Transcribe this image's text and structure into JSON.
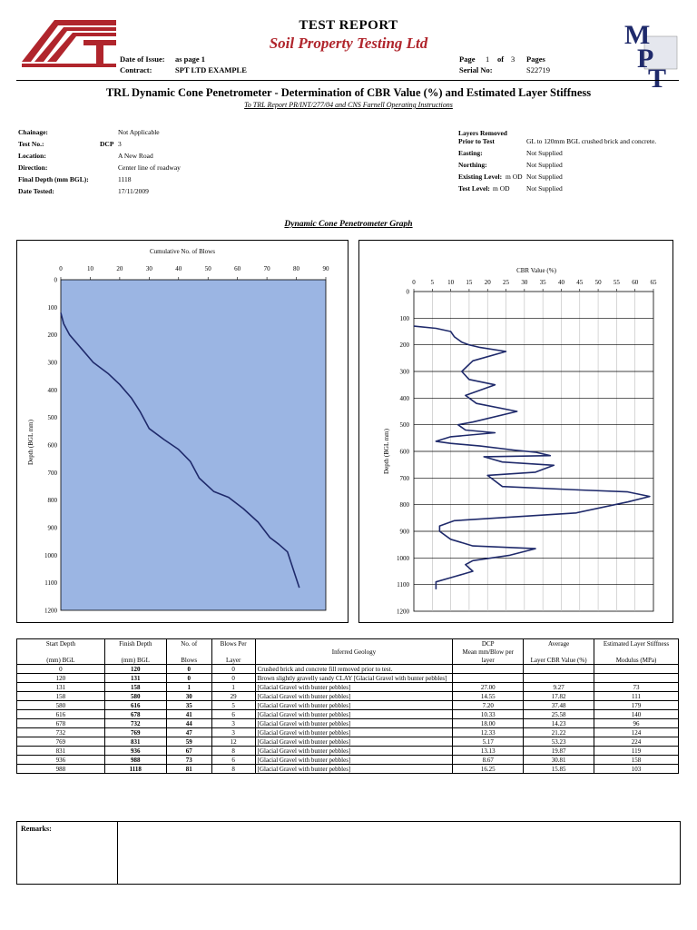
{
  "header": {
    "title": "TEST REPORT",
    "company": "Soil Property Testing Ltd",
    "date_of_issue_label": "Date of Issue:",
    "date_of_issue_value": "as page 1",
    "contract_label": "Contract:",
    "contract_value": "SPT LTD EXAMPLE",
    "page_label": "Page",
    "page_num": "1",
    "of_label": "of",
    "page_total": "3",
    "pages_label": "Pages",
    "serial_label": "Serial No:",
    "serial_value": "S22719",
    "logo_right_text": "MPT",
    "brand_color": "#b0252c",
    "navy_color": "#1f2a6b"
  },
  "report": {
    "title": "TRL Dynamic Cone Penetrometer - Determination of CBR Value (%) and Estimated Layer Stiffness",
    "subtitle": "To TRL Report PR/INT/277/04 and CNS Farnell Operating Instructions"
  },
  "info_left": [
    {
      "label": "Chainage:",
      "value": "Not Applicable"
    },
    {
      "label": "Test No.:",
      "value": "3",
      "prefix": "DCP"
    },
    {
      "label": "Location:",
      "value": "A New Road"
    },
    {
      "label": "Direction:",
      "value": "Center line of roadway"
    },
    {
      "label": "Final Depth (mm BGL):",
      "value": "1118"
    },
    {
      "label": "Date Tested:",
      "value": "17/11/2009"
    }
  ],
  "info_right": {
    "layers_label_1": "Layers Removed",
    "layers_label_2": "Prior to Test",
    "layers_value": "GL to 120mm BGL crushed brick and concrete.",
    "easting_label": "Easting:",
    "easting_value": "Not Supplied",
    "northing_label": "Northing:",
    "northing_value": "Not Supplied",
    "existing_label": "Existing Level:",
    "existing_unit": "m OD",
    "existing_value": "Not Supplied",
    "test_level_label": "Test Level:",
    "test_level_unit": "m OD",
    "test_level_value": "Not Supplied"
  },
  "graph_title": "Dynamic Cone Penetrometer Graph",
  "chart_data": [
    {
      "type": "line",
      "title": "Cumulative No. of Blows",
      "xlabel": "Cumulative No. of Blows",
      "ylabel": "Depth (BGL mm)",
      "xlim": [
        0,
        90
      ],
      "ylim": [
        0,
        1200
      ],
      "x_ticks": [
        0,
        10,
        20,
        30,
        40,
        50,
        60,
        70,
        80,
        90
      ],
      "y_ticks": [
        0,
        100,
        200,
        300,
        400,
        500,
        600,
        700,
        800,
        900,
        1000,
        1100,
        1200
      ],
      "plot_color": "#9bb5e3",
      "line_color": "#1f2a6b",
      "x": [
        0,
        1,
        3,
        7,
        11,
        16,
        20,
        24,
        27,
        30,
        35,
        40,
        44,
        47,
        52,
        57,
        62,
        67,
        71,
        74,
        77,
        81
      ],
      "y": [
        120,
        160,
        200,
        250,
        300,
        340,
        380,
        430,
        480,
        540,
        580,
        616,
        660,
        720,
        769,
        790,
        831,
        880,
        936,
        960,
        988,
        1118
      ]
    },
    {
      "type": "line",
      "title": "CBR Value (%)",
      "xlabel": "CBR Value (%)",
      "ylabel": "Depth (BGL mm)",
      "xlim": [
        0,
        65
      ],
      "ylim": [
        0,
        1200
      ],
      "x_ticks": [
        0,
        5,
        10,
        15,
        20,
        25,
        30,
        35,
        40,
        45,
        50,
        55,
        60,
        65
      ],
      "y_ticks": [
        0,
        100,
        200,
        300,
        400,
        500,
        600,
        700,
        800,
        900,
        1000,
        1100,
        1200
      ],
      "line_color": "#1f2a6b",
      "x": [
        0,
        6,
        10,
        11,
        13,
        15,
        18,
        25,
        16,
        13,
        15,
        22,
        14,
        17,
        28,
        16,
        12,
        14,
        22,
        10,
        6,
        10,
        18,
        27,
        33,
        37,
        19,
        24,
        38,
        33,
        20,
        24,
        45,
        58,
        64,
        58,
        44,
        11,
        7,
        7,
        10,
        16,
        33,
        26,
        16,
        14,
        16,
        11,
        6,
        6
      ],
      "y": [
        130,
        138,
        150,
        170,
        190,
        200,
        210,
        225,
        260,
        300,
        330,
        350,
        390,
        420,
        450,
        490,
        500,
        520,
        530,
        545,
        562,
        570,
        580,
        595,
        603,
        616,
        620,
        640,
        652,
        678,
        690,
        732,
        745,
        752,
        769,
        790,
        831,
        860,
        880,
        900,
        930,
        955,
        965,
        990,
        1010,
        1025,
        1050,
        1070,
        1090,
        1118
      ]
    }
  ],
  "table": {
    "headers": [
      [
        "Start Depth",
        "(mm) BGL"
      ],
      [
        "Finish Depth",
        "(mm) BGL"
      ],
      [
        "No. of",
        "Blows"
      ],
      [
        "Blows Per",
        "Layer"
      ],
      [
        "Inferred Geology"
      ],
      [
        "DCP",
        "Mean mm/Blow per",
        "layer"
      ],
      [
        "Average",
        "Layer CBR Value (%)"
      ],
      [
        "Estimated Layer Stiffness",
        "Modulus  (MPa)"
      ]
    ],
    "rows": [
      [
        "0",
        "120",
        "0",
        "0",
        "Crushed brick and concrete fill removed prior to test.",
        "",
        "",
        ""
      ],
      [
        "120",
        "131",
        "0",
        "0",
        "Brown slightly gravelly sandy CLAY [Glacial Gravel with bunter pebbles]",
        "",
        "",
        ""
      ],
      [
        "131",
        "158",
        "1",
        "1",
        "[Glacial Gravel with bunter pebbles]",
        "27.00",
        "9.27",
        "73"
      ],
      [
        "158",
        "580",
        "30",
        "29",
        "[Glacial Gravel with bunter pebbles]",
        "14.55",
        "17.82",
        "111"
      ],
      [
        "580",
        "616",
        "35",
        "5",
        "[Glacial Gravel with bunter pebbles]",
        "7.20",
        "37.48",
        "179"
      ],
      [
        "616",
        "678",
        "41",
        "6",
        "[Glacial Gravel with bunter pebbles]",
        "10.33",
        "25.58",
        "140"
      ],
      [
        "678",
        "732",
        "44",
        "3",
        "[Glacial Gravel with bunter pebbles]",
        "18.00",
        "14.23",
        "96"
      ],
      [
        "732",
        "769",
        "47",
        "3",
        "[Glacial Gravel with bunter pebbles]",
        "12.33",
        "21.22",
        "124"
      ],
      [
        "769",
        "831",
        "59",
        "12",
        "[Glacial Gravel with bunter pebbles]",
        "5.17",
        "53.23",
        "224"
      ],
      [
        "831",
        "936",
        "67",
        "8",
        "[Glacial Gravel with bunter pebbles]",
        "13.13",
        "19.87",
        "119"
      ],
      [
        "936",
        "988",
        "73",
        "6",
        "[Glacial Gravel with bunter pebbles]",
        "8.67",
        "30.81",
        "158"
      ],
      [
        "988",
        "1118",
        "81",
        "8",
        "[Glacial Gravel with bunter pebbles]",
        "16.25",
        "15.85",
        "103"
      ]
    ]
  },
  "remarks": {
    "label": "Remarks:",
    "text": ""
  }
}
